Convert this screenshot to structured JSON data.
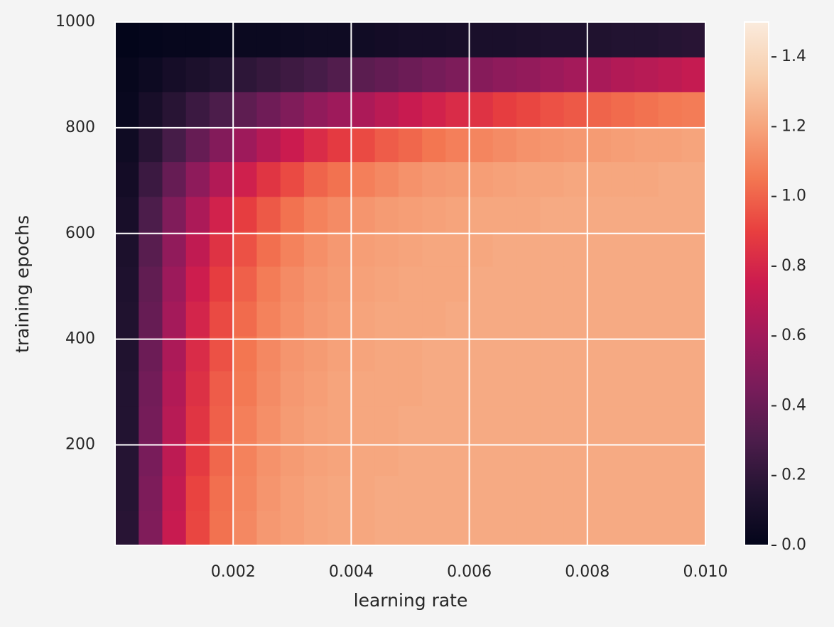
{
  "chart_data": {
    "type": "heatmap",
    "xlabel": "learning rate",
    "ylabel": "training epochs",
    "xlim": [
      0,
      0.01
    ],
    "ylim": [
      10,
      1000
    ],
    "xticks": [
      0.002,
      0.004,
      0.006,
      0.008,
      {
        "value": 0.01,
        "label": "0.010"
      }
    ],
    "yticks": [
      200,
      400,
      600,
      800,
      1000
    ],
    "grid": true,
    "colormap": "rocket",
    "clim": [
      0,
      1.5
    ],
    "cticks": [
      {
        "value": 0,
        "label": "0.0"
      },
      0.2,
      0.4,
      0.6,
      0.8,
      {
        "value": 1,
        "label": "1.0"
      },
      1.2,
      1.4
    ],
    "z": [
      [
        0.17,
        0.48,
        0.74,
        0.92,
        1.04,
        1.11,
        1.16,
        1.18,
        1.2,
        1.21,
        1.21,
        1.22,
        1.22,
        1.22,
        1.22,
        1.22,
        1.22,
        1.22,
        1.22,
        1.22,
        1.22,
        1.22,
        1.22,
        1.22,
        1.22
      ],
      [
        0.16,
        0.47,
        0.72,
        0.91,
        1.03,
        1.1,
        1.15,
        1.18,
        1.2,
        1.21,
        1.21,
        1.22,
        1.22,
        1.22,
        1.22,
        1.22,
        1.22,
        1.22,
        1.22,
        1.22,
        1.22,
        1.22,
        1.22,
        1.22,
        1.22
      ],
      [
        0.16,
        0.45,
        0.7,
        0.88,
        1.01,
        1.09,
        1.14,
        1.17,
        1.19,
        1.2,
        1.21,
        1.21,
        1.22,
        1.22,
        1.22,
        1.22,
        1.22,
        1.22,
        1.22,
        1.22,
        1.22,
        1.22,
        1.22,
        1.22,
        1.22
      ],
      [
        0.15,
        0.44,
        0.68,
        0.86,
        0.99,
        1.08,
        1.13,
        1.17,
        1.19,
        1.2,
        1.21,
        1.21,
        1.22,
        1.22,
        1.22,
        1.22,
        1.22,
        1.22,
        1.22,
        1.22,
        1.22,
        1.22,
        1.22,
        1.22,
        1.22
      ],
      [
        0.15,
        0.43,
        0.66,
        0.84,
        0.98,
        1.06,
        1.12,
        1.16,
        1.18,
        1.2,
        1.21,
        1.21,
        1.21,
        1.22,
        1.22,
        1.22,
        1.22,
        1.22,
        1.22,
        1.22,
        1.22,
        1.22,
        1.22,
        1.22,
        1.22
      ],
      [
        0.14,
        0.41,
        0.64,
        0.82,
        0.95,
        1.05,
        1.11,
        1.15,
        1.17,
        1.19,
        1.2,
        1.21,
        1.21,
        1.22,
        1.22,
        1.22,
        1.22,
        1.22,
        1.22,
        1.22,
        1.22,
        1.22,
        1.22,
        1.22,
        1.22
      ],
      [
        0.14,
        0.39,
        0.61,
        0.79,
        0.93,
        1.02,
        1.09,
        1.13,
        1.16,
        1.18,
        1.2,
        1.21,
        1.21,
        1.21,
        1.22,
        1.22,
        1.22,
        1.22,
        1.22,
        1.22,
        1.22,
        1.22,
        1.22,
        1.22,
        1.22
      ],
      [
        0.13,
        0.37,
        0.58,
        0.76,
        0.89,
        0.99,
        1.07,
        1.12,
        1.15,
        1.17,
        1.19,
        1.2,
        1.21,
        1.21,
        1.21,
        1.22,
        1.22,
        1.22,
        1.22,
        1.22,
        1.22,
        1.22,
        1.22,
        1.22,
        1.22
      ],
      [
        0.12,
        0.34,
        0.54,
        0.71,
        0.85,
        0.95,
        1.03,
        1.09,
        1.13,
        1.16,
        1.18,
        1.19,
        1.2,
        1.21,
        1.21,
        1.21,
        1.22,
        1.22,
        1.22,
        1.22,
        1.22,
        1.22,
        1.22,
        1.22,
        1.22
      ],
      [
        0.1,
        0.3,
        0.48,
        0.64,
        0.78,
        0.89,
        0.97,
        1.04,
        1.09,
        1.12,
        1.15,
        1.17,
        1.18,
        1.19,
        1.2,
        1.21,
        1.21,
        1.21,
        1.22,
        1.22,
        1.22,
        1.22,
        1.22,
        1.22,
        1.22
      ],
      [
        0.08,
        0.24,
        0.39,
        0.53,
        0.66,
        0.77,
        0.86,
        0.93,
        1.0,
        1.04,
        1.08,
        1.11,
        1.14,
        1.16,
        1.17,
        1.18,
        1.19,
        1.2,
        1.2,
        1.21,
        1.21,
        1.21,
        1.21,
        1.22,
        1.22
      ],
      [
        0.06,
        0.17,
        0.28,
        0.39,
        0.49,
        0.59,
        0.67,
        0.75,
        0.82,
        0.88,
        0.93,
        0.98,
        1.01,
        1.05,
        1.08,
        1.1,
        1.12,
        1.14,
        1.15,
        1.16,
        1.17,
        1.18,
        1.19,
        1.19,
        1.2
      ],
      [
        0.03,
        0.1,
        0.17,
        0.24,
        0.3,
        0.36,
        0.42,
        0.48,
        0.54,
        0.59,
        0.64,
        0.69,
        0.74,
        0.78,
        0.82,
        0.85,
        0.89,
        0.92,
        0.95,
        0.97,
        1.0,
        1.02,
        1.04,
        1.06,
        1.07
      ],
      [
        0.02,
        0.05,
        0.09,
        0.12,
        0.15,
        0.19,
        0.22,
        0.25,
        0.28,
        0.32,
        0.35,
        0.38,
        0.41,
        0.44,
        0.47,
        0.5,
        0.53,
        0.55,
        0.58,
        0.61,
        0.63,
        0.66,
        0.68,
        0.7,
        0.73
      ],
      [
        0.0,
        0.01,
        0.02,
        0.02,
        0.03,
        0.04,
        0.04,
        0.05,
        0.06,
        0.06,
        0.07,
        0.08,
        0.09,
        0.09,
        0.1,
        0.11,
        0.11,
        0.12,
        0.13,
        0.13,
        0.14,
        0.15,
        0.15,
        0.16,
        0.17
      ]
    ]
  }
}
